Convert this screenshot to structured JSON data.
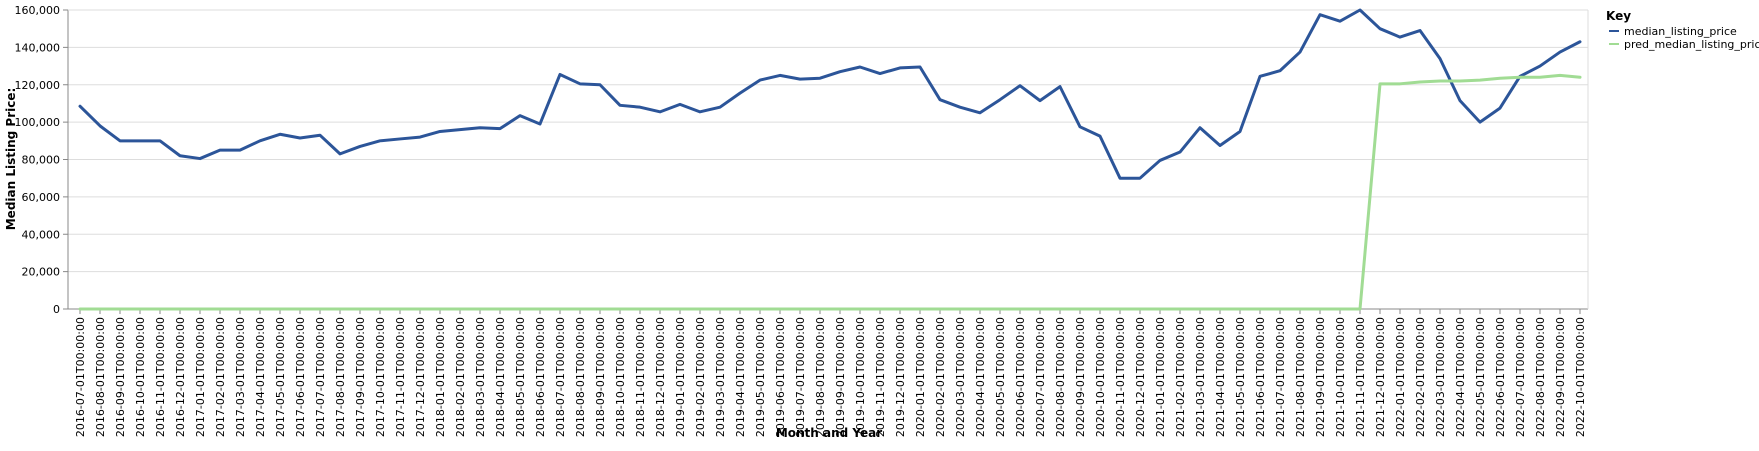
{
  "chart_data": {
    "type": "line",
    "xlabel": "Month and Year",
    "ylabel": "Median Listing Price:",
    "ylim": [
      0,
      160000
    ],
    "yticks": [
      "0",
      "20,000",
      "40,000",
      "60,000",
      "80,000",
      "100,000",
      "120,000",
      "140,000",
      "160,000"
    ],
    "ytick_values": [
      0,
      20000,
      40000,
      60000,
      80000,
      100000,
      120000,
      140000,
      160000
    ],
    "grid": true,
    "legend": {
      "title": "Key",
      "placement": "top-right"
    },
    "x": [
      "2016-07-01T00:00:00",
      "2016-08-01T00:00:00",
      "2016-09-01T00:00:00",
      "2016-10-01T00:00:00",
      "2016-11-01T00:00:00",
      "2016-12-01T00:00:00",
      "2017-01-01T00:00:00",
      "2017-02-01T00:00:00",
      "2017-03-01T00:00:00",
      "2017-04-01T00:00:00",
      "2017-05-01T00:00:00",
      "2017-06-01T00:00:00",
      "2017-07-01T00:00:00",
      "2017-08-01T00:00:00",
      "2017-09-01T00:00:00",
      "2017-10-01T00:00:00",
      "2017-11-01T00:00:00",
      "2017-12-01T00:00:00",
      "2018-01-01T00:00:00",
      "2018-02-01T00:00:00",
      "2018-03-01T00:00:00",
      "2018-04-01T00:00:00",
      "2018-05-01T00:00:00",
      "2018-06-01T00:00:00",
      "2018-07-01T00:00:00",
      "2018-08-01T00:00:00",
      "2018-09-01T00:00:00",
      "2018-10-01T00:00:00",
      "2018-11-01T00:00:00",
      "2018-12-01T00:00:00",
      "2019-01-01T00:00:00",
      "2019-02-01T00:00:00",
      "2019-03-01T00:00:00",
      "2019-04-01T00:00:00",
      "2019-05-01T00:00:00",
      "2019-06-01T00:00:00",
      "2019-07-01T00:00:00",
      "2019-08-01T00:00:00",
      "2019-09-01T00:00:00",
      "2019-10-01T00:00:00",
      "2019-11-01T00:00:00",
      "2019-12-01T00:00:00",
      "2020-01-01T00:00:00",
      "2020-02-01T00:00:00",
      "2020-03-01T00:00:00",
      "2020-04-01T00:00:00",
      "2020-05-01T00:00:00",
      "2020-06-01T00:00:00",
      "2020-07-01T00:00:00",
      "2020-08-01T00:00:00",
      "2020-09-01T00:00:00",
      "2020-10-01T00:00:00",
      "2020-11-01T00:00:00",
      "2020-12-01T00:00:00",
      "2021-01-01T00:00:00",
      "2021-02-01T00:00:00",
      "2021-03-01T00:00:00",
      "2021-04-01T00:00:00",
      "2021-05-01T00:00:00",
      "2021-06-01T00:00:00",
      "2021-07-01T00:00:00",
      "2021-08-01T00:00:00",
      "2021-09-01T00:00:00",
      "2021-10-01T00:00:00",
      "2021-11-01T00:00:00",
      "2021-12-01T00:00:00",
      "2022-01-01T00:00:00",
      "2022-02-01T00:00:00",
      "2022-03-01T00:00:00",
      "2022-04-01T00:00:00",
      "2022-05-01T00:00:00",
      "2022-06-01T00:00:00",
      "2022-07-01T00:00:00",
      "2022-08-01T00:00:00",
      "2022-09-01T00:00:00",
      "2022-10-01T00:00:00"
    ],
    "series": [
      {
        "name": "median_listing_price",
        "color": "#2c5599",
        "values": [
          108500,
          98000,
          90000,
          90000,
          90000,
          82000,
          80500,
          85000,
          85000,
          90000,
          93500,
          91500,
          93000,
          83000,
          87000,
          90000,
          91000,
          92000,
          95000,
          96000,
          97000,
          96500,
          103500,
          99000,
          125500,
          120500,
          120000,
          109000,
          108000,
          105500,
          109500,
          105500,
          108000,
          115500,
          122500,
          125000,
          123000,
          123500,
          127000,
          129500,
          126000,
          129000,
          129500,
          112000,
          108000,
          105000,
          112000,
          119500,
          111500,
          119000,
          97500,
          92500,
          70000,
          70000,
          79500,
          84000,
          97000,
          87500,
          95000,
          124500,
          127500,
          137500,
          157500,
          154000,
          160000,
          150000,
          145500,
          149000,
          134000,
          111500,
          100000,
          107500,
          124500,
          130000,
          137500,
          143000
        ]
      },
      {
        "name": "pred_median_listing_price",
        "color": "#a1dc94",
        "values": [
          0,
          0,
          0,
          0,
          0,
          0,
          0,
          0,
          0,
          0,
          0,
          0,
          0,
          0,
          0,
          0,
          0,
          0,
          0,
          0,
          0,
          0,
          0,
          0,
          0,
          0,
          0,
          0,
          0,
          0,
          0,
          0,
          0,
          0,
          0,
          0,
          0,
          0,
          0,
          0,
          0,
          0,
          0,
          0,
          0,
          0,
          0,
          0,
          0,
          0,
          0,
          0,
          0,
          0,
          0,
          0,
          0,
          0,
          0,
          0,
          0,
          0,
          0,
          0,
          0,
          120500,
          120500,
          121500,
          122000,
          122000,
          122500,
          123500,
          124000,
          124000,
          125000,
          124000
        ]
      }
    ]
  }
}
